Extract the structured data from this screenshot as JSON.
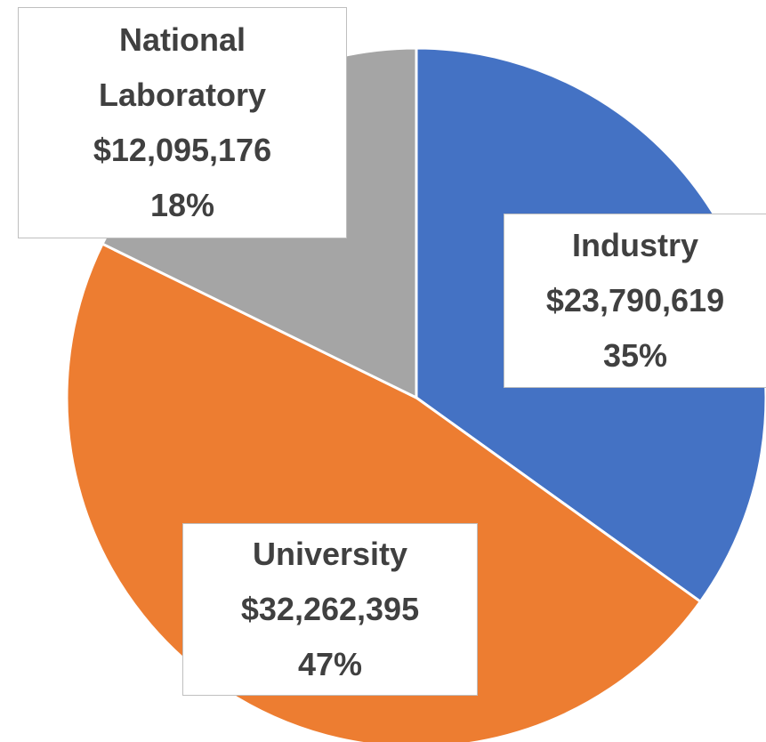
{
  "chart_data": {
    "type": "pie",
    "categories": [
      "Industry",
      "University",
      "National Laboratory"
    ],
    "values": [
      23790619,
      32262395,
      12095176
    ],
    "value_labels": [
      "$23,790,619",
      "$32,262,395",
      "$12,095,176"
    ],
    "percent_labels": [
      "35%",
      "47%",
      "18%"
    ],
    "colors": [
      "#4472c4",
      "#ed7d31",
      "#a5a5a5"
    ]
  }
}
